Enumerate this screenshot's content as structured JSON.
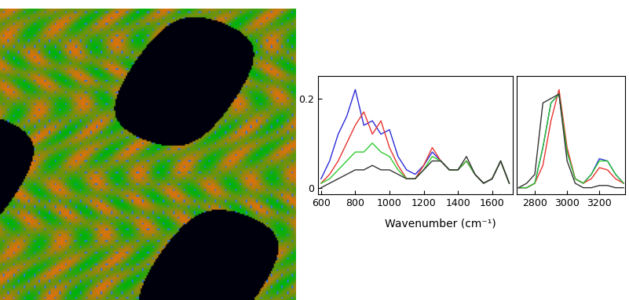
{
  "chart_data": [
    {
      "type": "line",
      "xlabel": "Wavenumber (cm⁻¹)",
      "x": [
        600,
        650,
        700,
        750,
        800,
        850,
        900,
        950,
        1000,
        1050,
        1100,
        1150,
        1200,
        1250,
        1300,
        1350,
        1400,
        1450,
        1500,
        1550,
        1600,
        1650,
        1700
      ],
      "xlim": [
        580,
        1720
      ],
      "xticks": [
        600,
        800,
        1000,
        1200,
        1400,
        1600
      ],
      "ylim": [
        -0.015,
        0.25
      ],
      "yticks": [
        0,
        0.2
      ],
      "series": [
        {
          "color": "#2b2bd9",
          "values": [
            0.02,
            0.06,
            0.12,
            0.16,
            0.22,
            0.14,
            0.15,
            0.12,
            0.13,
            0.07,
            0.04,
            0.03,
            0.05,
            0.08,
            0.06,
            0.04,
            0.04,
            0.06,
            0.03,
            0.01,
            0.02,
            0.06,
            0.01
          ]
        },
        {
          "color": "#e8332e",
          "values": [
            0.01,
            0.03,
            0.06,
            0.1,
            0.14,
            0.17,
            0.12,
            0.15,
            0.09,
            0.05,
            0.02,
            0.02,
            0.05,
            0.09,
            0.06,
            0.04,
            0.04,
            0.06,
            0.03,
            0.01,
            0.02,
            0.06,
            0.01
          ]
        },
        {
          "color": "#2fcc2f",
          "values": [
            0.01,
            0.02,
            0.04,
            0.06,
            0.08,
            0.08,
            0.1,
            0.08,
            0.07,
            0.04,
            0.02,
            0.02,
            0.04,
            0.07,
            0.06,
            0.04,
            0.04,
            0.06,
            0.03,
            0.01,
            0.02,
            0.06,
            0.01
          ]
        },
        {
          "color": "#333333",
          "values": [
            0.0,
            0.01,
            0.02,
            0.03,
            0.04,
            0.04,
            0.05,
            0.04,
            0.04,
            0.03,
            0.02,
            0.02,
            0.04,
            0.06,
            0.06,
            0.04,
            0.04,
            0.07,
            0.03,
            0.01,
            0.02,
            0.06,
            0.01
          ]
        }
      ]
    },
    {
      "type": "line",
      "x": [
        2700,
        2750,
        2800,
        2850,
        2900,
        2950,
        3000,
        3050,
        3100,
        3150,
        3200,
        3250,
        3300,
        3350
      ],
      "xlim": [
        2690,
        3360
      ],
      "xticks": [
        2800,
        3000,
        3200
      ],
      "ylim": [
        -0.015,
        0.25
      ],
      "tick_labels": "x",
      "series": [
        {
          "color": "#2b2bd9",
          "values": [
            0.0,
            0.0,
            0.01,
            0.09,
            0.19,
            0.21,
            0.08,
            0.02,
            0.01,
            0.03,
            0.065,
            0.06,
            0.03,
            0.01
          ]
        },
        {
          "color": "#e8332e",
          "values": [
            0.0,
            0.0,
            0.01,
            0.05,
            0.15,
            0.22,
            0.09,
            0.02,
            0.01,
            0.02,
            0.045,
            0.04,
            0.02,
            0.01
          ]
        },
        {
          "color": "#2fcc2f",
          "values": [
            0.0,
            0.0,
            0.01,
            0.09,
            0.19,
            0.21,
            0.08,
            0.02,
            0.01,
            0.03,
            0.06,
            0.06,
            0.03,
            0.01
          ]
        },
        {
          "color": "#333333",
          "values": [
            0.0,
            0.01,
            0.03,
            0.19,
            0.2,
            0.21,
            0.06,
            0.01,
            0.0,
            0.0,
            0.005,
            0.005,
            0.0,
            0.0
          ]
        }
      ]
    }
  ]
}
